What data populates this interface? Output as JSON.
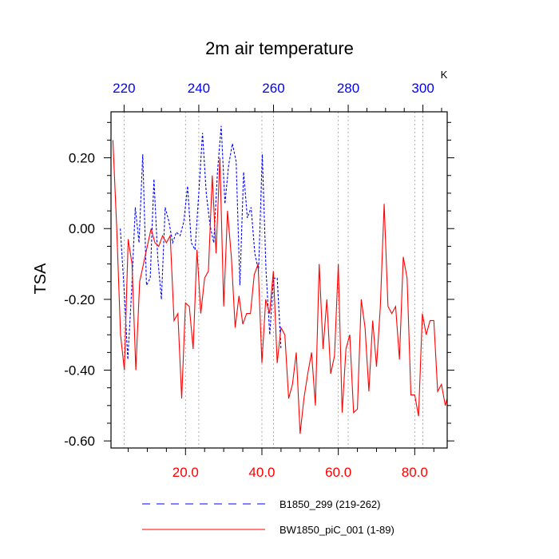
{
  "chart_data": {
    "type": "line",
    "title": "2m air temperature",
    "ylabel": "TSA",
    "top_axis_unit": "K",
    "bottom_axis": {
      "range": [
        0.5,
        88.5
      ],
      "ticks": [
        20,
        40,
        60,
        80
      ],
      "tick_labels": [
        "20.0",
        "40.0",
        "60.0",
        "80.0"
      ],
      "color": "#ff0000"
    },
    "top_axis": {
      "range": [
        216.5,
        306.5
      ],
      "ticks": [
        220,
        240,
        260,
        280,
        300
      ],
      "tick_labels": [
        "220",
        "240",
        "260",
        "280",
        "300"
      ],
      "color": "#0000ff"
    },
    "y_axis": {
      "range": [
        -0.62,
        0.33
      ],
      "ticks": [
        0.2,
        0.0,
        -0.2,
        -0.4,
        -0.6
      ],
      "tick_labels": [
        "0.20",
        "0.00",
        "-0.20",
        "-0.40",
        "-0.60"
      ]
    },
    "grid": "vertical dotted at major x ticks",
    "legend_position": "bottom",
    "series": [
      {
        "name": "B1850_299 (219-262)",
        "axis": "top",
        "color": "#0000ff",
        "dash": "dashed",
        "x_start": 219,
        "values": [
          0.0,
          -0.17,
          -0.37,
          -0.18,
          0.06,
          -0.04,
          0.21,
          -0.16,
          -0.14,
          0.14,
          -0.08,
          -0.2,
          0.06,
          0.02,
          -0.04,
          -0.01,
          -0.02,
          0.02,
          0.12,
          -0.04,
          -0.06,
          0.1,
          0.27,
          0.1,
          0.01,
          -0.04,
          0.16,
          0.29,
          0.07,
          0.18,
          0.24,
          0.19,
          -0.16,
          0.16,
          0.03,
          0.06,
          -0.07,
          -0.12,
          0.21,
          -0.12,
          -0.3,
          -0.14,
          -0.14,
          -0.34
        ]
      },
      {
        "name": "BW1850_piC_001 (1-89)",
        "axis": "bottom",
        "color": "#ff0000",
        "dash": "solid",
        "x_start": 1,
        "values": [
          0.25,
          0.0,
          -0.3,
          -0.4,
          -0.03,
          -0.1,
          -0.4,
          -0.15,
          -0.1,
          -0.05,
          0.0,
          -0.04,
          -0.05,
          -0.02,
          -0.04,
          -0.02,
          -0.26,
          -0.24,
          -0.48,
          -0.21,
          -0.22,
          -0.34,
          -0.06,
          -0.24,
          -0.14,
          -0.12,
          0.15,
          -0.07,
          0.2,
          -0.22,
          0.05,
          -0.08,
          -0.28,
          -0.19,
          -0.27,
          -0.24,
          -0.24,
          -0.13,
          -0.1,
          -0.38,
          -0.2,
          -0.24,
          -0.12,
          -0.38,
          -0.28,
          -0.3,
          -0.48,
          -0.44,
          -0.35,
          -0.58,
          -0.48,
          -0.41,
          -0.35,
          -0.5,
          -0.1,
          -0.34,
          -0.2,
          -0.41,
          -0.36,
          -0.1,
          -0.52,
          -0.34,
          -0.3,
          -0.52,
          -0.51,
          -0.2,
          -0.28,
          -0.46,
          -0.26,
          -0.39,
          -0.22,
          0.07,
          -0.22,
          -0.24,
          -0.22,
          -0.37,
          -0.08,
          -0.14,
          -0.47,
          -0.47,
          -0.53,
          -0.24,
          -0.3,
          -0.26,
          -0.26,
          -0.46,
          -0.44,
          -0.5,
          -0.46
        ]
      }
    ]
  }
}
